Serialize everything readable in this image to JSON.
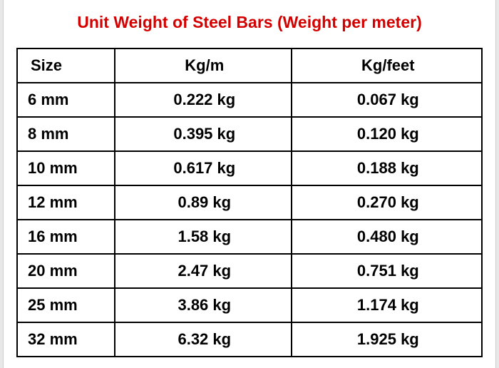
{
  "title": {
    "text": "Unit Weight of Steel Bars (Weight per meter)",
    "color": "#d40000",
    "fontsize": 23
  },
  "table": {
    "type": "table",
    "border_color": "#000000",
    "background_color": "#ffffff",
    "header_fontsize": 22,
    "cell_fontsize": 22,
    "columns": [
      {
        "key": "size",
        "label": "Size",
        "align": "left",
        "width_pct": 21
      },
      {
        "key": "kgm",
        "label": "Kg/m",
        "align": "center",
        "width_pct": 38
      },
      {
        "key": "kgft",
        "label": "Kg/feet",
        "align": "center",
        "width_pct": 41
      }
    ],
    "rows": [
      {
        "size": "6 mm",
        "kgm": "0.222 kg",
        "kgft": "0.067 kg"
      },
      {
        "size": "8 mm",
        "kgm": "0.395 kg",
        "kgft": "0.120 kg"
      },
      {
        "size": "10 mm",
        "kgm": "0.617 kg",
        "kgft": "0.188 kg"
      },
      {
        "size": "12 mm",
        "kgm": "0.89 kg",
        "kgft": "0.270 kg"
      },
      {
        "size": "16 mm",
        "kgm": "1.58 kg",
        "kgft": "0.480 kg"
      },
      {
        "size": "20 mm",
        "kgm": "2.47 kg",
        "kgft": "0.751 kg"
      },
      {
        "size": "25 mm",
        "kgm": "3.86 kg",
        "kgft": "1.174 kg"
      },
      {
        "size": "32 mm",
        "kgm": "6.32 kg",
        "kgft": "1.925 kg"
      }
    ]
  }
}
